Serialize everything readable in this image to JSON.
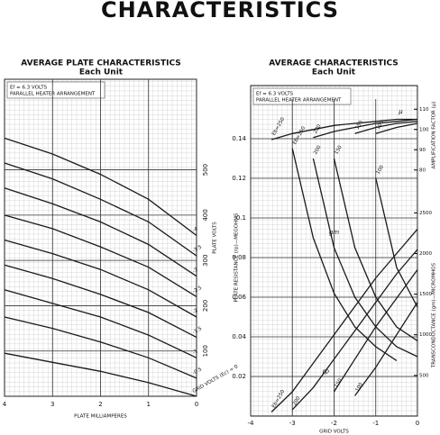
{
  "title": "CHARACTERISTICS",
  "chart_data": [
    {
      "type": "line",
      "title": "AVERAGE PLATE CHARACTERISTICS",
      "subtitle": "Each Unit",
      "notes": [
        "Ef = 6.3 VOLTS",
        "PARALLEL HEATER ARRANGEMENT"
      ],
      "x_label": "PLATE MILLIAMPERES",
      "y_label": "PLATE VOLTS",
      "x": [
        0,
        1,
        2,
        3,
        4
      ],
      "xlim": [
        4,
        0
      ],
      "xticks": [
        4,
        3,
        2,
        1,
        0
      ],
      "ylim": [
        0,
        700
      ],
      "yticks": [
        100,
        200,
        300,
        400,
        500
      ],
      "grid": true,
      "color": "#1a1a1a",
      "series": [
        {
          "name": "GRID VOLTS (Ec) = 0",
          "values": [
            0,
            30,
            55,
            75,
            95
          ]
        },
        {
          "name": "-0.5",
          "values": [
            40,
            85,
            120,
            150,
            175
          ]
        },
        {
          "name": "-1",
          "values": [
            85,
            135,
            175,
            205,
            235
          ]
        },
        {
          "name": "-1.5",
          "values": [
            130,
            185,
            225,
            260,
            290
          ]
        },
        {
          "name": "-2",
          "values": [
            175,
            235,
            280,
            315,
            345
          ]
        },
        {
          "name": "-2.5",
          "values": [
            220,
            285,
            330,
            370,
            400
          ]
        },
        {
          "name": "-3",
          "values": [
            265,
            335,
            385,
            425,
            460
          ]
        },
        {
          "name": "-3.5",
          "values": [
            310,
            385,
            435,
            480,
            515
          ]
        },
        {
          "name": "-4",
          "values": [
            355,
            435,
            490,
            535,
            570
          ]
        }
      ]
    },
    {
      "type": "line",
      "title": "AVERAGE CHARACTERISTICS",
      "subtitle": "Each Unit",
      "notes": [
        "Ef = 6.3 VOLTS",
        "PARALLEL HEATER ARRANGEMENT"
      ],
      "x_label": "GRID VOLTS",
      "y_label": "PLATE RESISTANCE (rp)—MEGOHMS",
      "y2_label": "TRANSCONDUCTANCE (gm)—MICROMHOS",
      "y3_label": "AMPLIFICATION FACTOR (μ)",
      "annotations": [
        "rp",
        "gm",
        "μ"
      ],
      "x": [
        -3.5,
        -3,
        -2.5,
        -2,
        -1.5,
        -1,
        -0.5,
        0
      ],
      "xlim": [
        -4,
        0
      ],
      "xticks": [
        -4,
        -3,
        -2,
        -1,
        0
      ],
      "ylim": [
        0,
        0.16
      ],
      "yticks": [
        0.02,
        0.04,
        0.06,
        0.08,
        0.1,
        0.12,
        0.14
      ],
      "y2lim": [
        0,
        3900
      ],
      "y2ticks": [
        500,
        1000,
        1500,
        2000,
        2500
      ],
      "y3lim": [
        75,
        115
      ],
      "y3ticks": [
        80,
        90,
        100,
        110
      ],
      "grid": true,
      "color": "#1a1a1a",
      "series": [
        {
          "name": "Eb=250",
          "values": [
            null,
            0.135,
            0.09,
            0.062,
            0.045,
            0.035,
            0.028,
            null
          ]
        },
        {
          "name": "200",
          "values": [
            null,
            null,
            0.13,
            0.085,
            0.06,
            0.045,
            0.035,
            0.03
          ]
        },
        {
          "name": "150",
          "values": [
            null,
            null,
            null,
            0.13,
            0.085,
            0.06,
            0.045,
            0.038
          ]
        },
        {
          "name": "100",
          "values": [
            null,
            null,
            null,
            null,
            null,
            0.12,
            0.075,
            0.055
          ]
        },
        {
          "name": "Eb=250",
          "axis": "y2",
          "values": [
            50,
            300,
            650,
            1000,
            1350,
            1700,
            2000,
            2300
          ]
        },
        {
          "name": "200",
          "axis": "y2",
          "values": [
            null,
            80,
            350,
            700,
            1050,
            1400,
            1750,
            2050
          ]
        },
        {
          "name": "150",
          "axis": "y2",
          "values": [
            null,
            null,
            null,
            300,
            700,
            1100,
            1450,
            1800
          ]
        },
        {
          "name": "100",
          "axis": "y2",
          "values": [
            null,
            null,
            null,
            null,
            250,
            600,
            1000,
            1400
          ]
        },
        {
          "name": "Eb=250",
          "axis": "y3",
          "values": [
            95,
            98,
            100,
            102,
            103,
            104,
            105,
            105
          ]
        },
        {
          "name": "200",
          "axis": "y3",
          "values": [
            null,
            null,
            96,
            99,
            101,
            103,
            104,
            105
          ]
        },
        {
          "name": "150",
          "axis": "y3",
          "values": [
            null,
            null,
            null,
            null,
            98,
            101,
            103,
            104
          ]
        },
        {
          "name": "100",
          "axis": "y3",
          "values": [
            null,
            null,
            null,
            null,
            null,
            98,
            101,
            103
          ]
        }
      ]
    }
  ]
}
